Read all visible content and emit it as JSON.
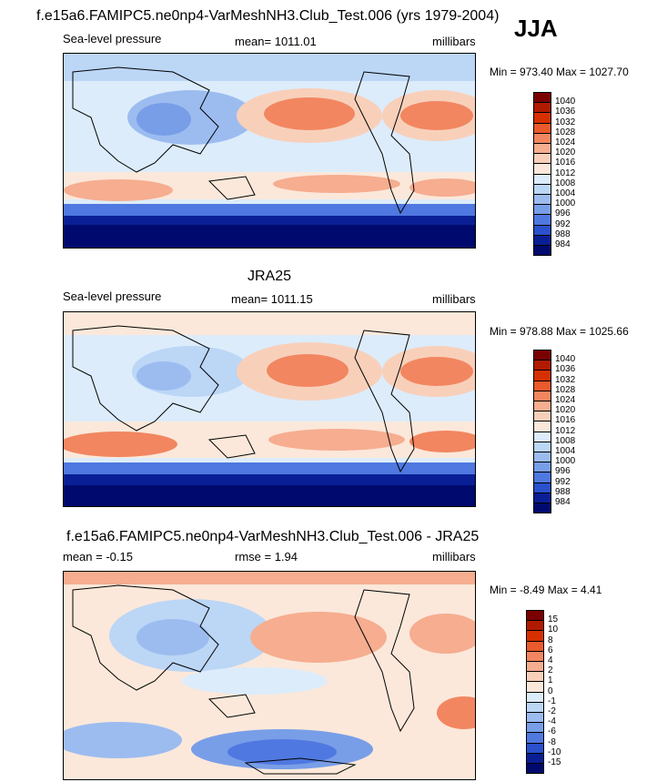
{
  "header": {
    "title": "f.e15a6.FAMIPC5.ne0np4-VarMeshNH3.Club_Test.006 (yrs 1979-2004)",
    "season": "JJA"
  },
  "chart_data": [
    {
      "type": "heatmap",
      "panel_title": "",
      "left_label": "Sea-level pressure",
      "center_label": "mean= 1011.01",
      "right_label": "millibars",
      "range_text": "Min = 973.40 Max = 1027.70",
      "colorbar": {
        "levels": [
          "1040",
          "1036",
          "1032",
          "1028",
          "1024",
          "1020",
          "1016",
          "1012",
          "1008",
          "1004",
          "1000",
          "996",
          "992",
          "988",
          "984"
        ],
        "colors": [
          "#7a0000",
          "#b01a00",
          "#d73000",
          "#ea5a2c",
          "#f28660",
          "#f6ad90",
          "#f8d0ba",
          "#fbe8da",
          "#dcecfb",
          "#bcd6f6",
          "#9cbcf0",
          "#789ee8",
          "#4f78e0",
          "#2a50cc",
          "#0a1f96",
          "#000a6e"
        ]
      }
    },
    {
      "type": "heatmap",
      "panel_title": "JRA25",
      "left_label": "Sea-level pressure",
      "center_label": "mean= 1011.15",
      "right_label": "millibars",
      "range_text": "Min = 978.88 Max = 1025.66",
      "colorbar": {
        "levels": [
          "1040",
          "1036",
          "1032",
          "1028",
          "1024",
          "1020",
          "1016",
          "1012",
          "1008",
          "1004",
          "1000",
          "996",
          "992",
          "988",
          "984"
        ],
        "colors": [
          "#7a0000",
          "#b01a00",
          "#d73000",
          "#ea5a2c",
          "#f28660",
          "#f6ad90",
          "#f8d0ba",
          "#fbe8da",
          "#dcecfb",
          "#bcd6f6",
          "#9cbcf0",
          "#789ee8",
          "#4f78e0",
          "#2a50cc",
          "#0a1f96",
          "#000a6e"
        ]
      }
    },
    {
      "type": "heatmap",
      "panel_title": "f.e15a6.FAMIPC5.ne0np4-VarMeshNH3.Club_Test.006 - JRA25",
      "left_label": "mean =  -0.15",
      "center_label": "rmse =   1.94",
      "right_label": "millibars",
      "range_text": "Min =  -8.49 Max =   4.41",
      "colorbar": {
        "levels": [
          "15",
          "10",
          "8",
          "6",
          "4",
          "2",
          "1",
          "0",
          "-1",
          "-2",
          "-4",
          "-6",
          "-8",
          "-10",
          "-15"
        ],
        "colors": [
          "#7a0000",
          "#b01a00",
          "#d73000",
          "#ea5a2c",
          "#f28660",
          "#f6ad90",
          "#f8d0ba",
          "#fbe8da",
          "#dcecfb",
          "#bcd6f6",
          "#9cbcf0",
          "#789ee8",
          "#4f78e0",
          "#2a50cc",
          "#0a1f96",
          "#000a6e"
        ]
      }
    }
  ]
}
